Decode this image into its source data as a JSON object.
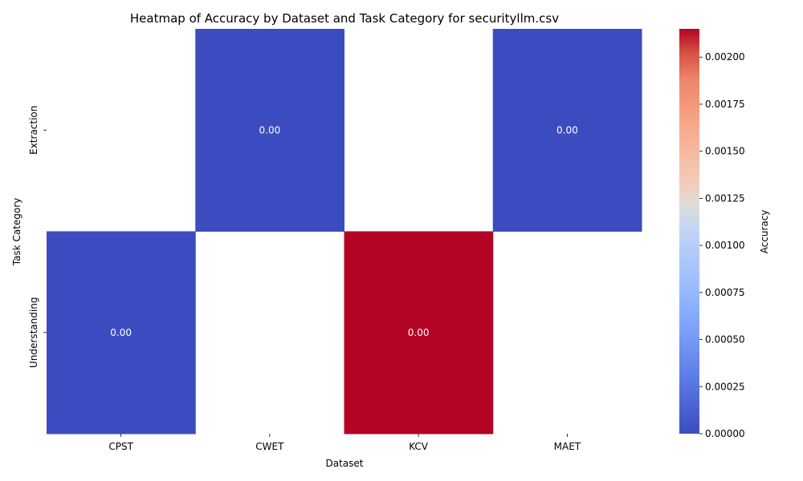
{
  "chart_data": {
    "type": "heatmap",
    "title": "Heatmap of Accuracy by Dataset and Task Category for securityllm.csv",
    "xlabel": "Dataset",
    "ylabel": "Task Category",
    "x_categories": [
      "CPST",
      "CWET",
      "KCV",
      "MAET"
    ],
    "y_categories": [
      "Extraction",
      "Understanding"
    ],
    "cells": [
      {
        "x": "CWET",
        "y": "Extraction",
        "value": 0.0,
        "label": "0.00"
      },
      {
        "x": "MAET",
        "y": "Extraction",
        "value": 0.0,
        "label": "0.00"
      },
      {
        "x": "CPST",
        "y": "Understanding",
        "value": 0.0,
        "label": "0.00"
      },
      {
        "x": "KCV",
        "y": "Understanding",
        "value": 0.00215,
        "label": "0.00"
      }
    ],
    "colorbar": {
      "label": "Accuracy",
      "colormap": "coolwarm",
      "range": [
        0,
        0.00215
      ],
      "ticks": [
        0.0,
        0.00025,
        0.0005,
        0.00075,
        0.001,
        0.00125,
        0.0015,
        0.00175,
        0.002
      ],
      "tick_labels": [
        "0.00000",
        "0.00025",
        "0.00050",
        "0.00075",
        "0.00100",
        "0.00125",
        "0.00150",
        "0.00175",
        "0.00200"
      ]
    },
    "colors": {
      "low": "#3b4cc0",
      "mid": "#dddcdc",
      "high": "#b40426"
    }
  }
}
